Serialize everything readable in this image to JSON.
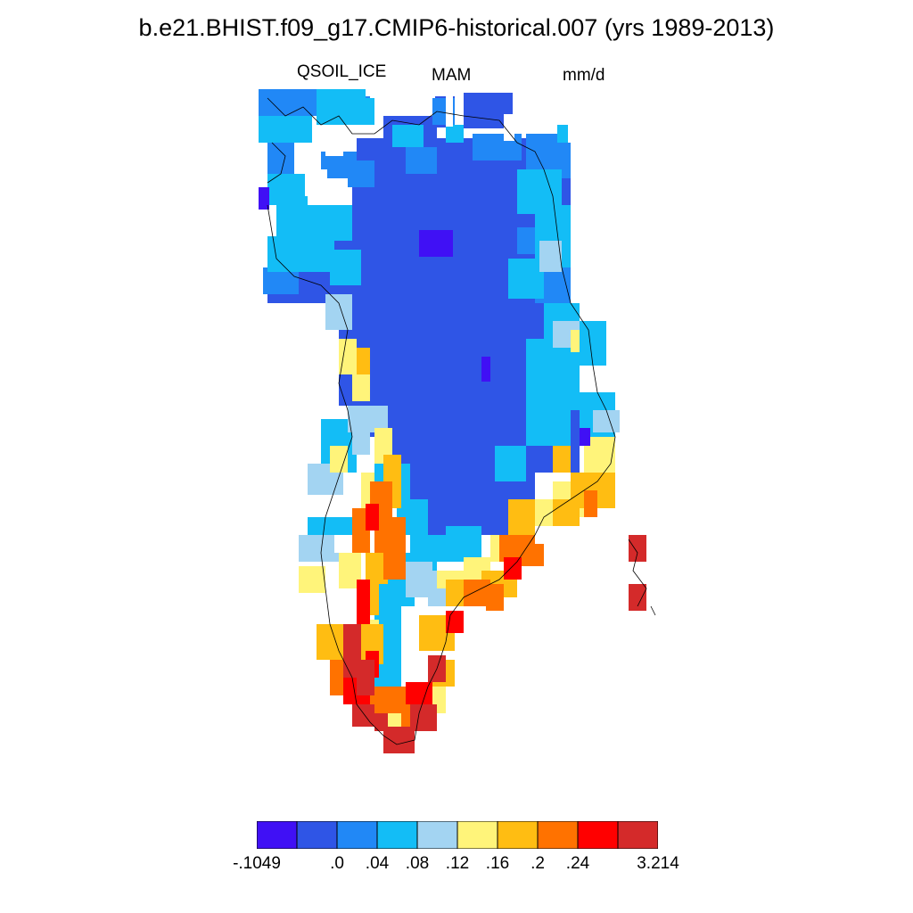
{
  "title": "b.e21.BHIST.f09_g17.CMIP6-historical.007 (yrs 1989-2013)",
  "subtitle": {
    "variable": "QSOIL_ICE",
    "season": "MAM",
    "units": "mm/d"
  },
  "colorbar": {
    "colors": [
      "#4010f5",
      "#2f55e6",
      "#2188f6",
      "#13bdf6",
      "#a3d4f2",
      "#fff47a",
      "#ffbd12",
      "#ff7200",
      "#ff0000",
      "#d42a2a"
    ],
    "labels": [
      "-.1049",
      ".0",
      ".04",
      ".08",
      ".12",
      ".16",
      ".2",
      ".24",
      "3.214"
    ],
    "label_positions": [
      0,
      2,
      3,
      4,
      5,
      6,
      7,
      8,
      10
    ]
  },
  "map": {
    "region": "Greenland",
    "field": "QSOIL_ICE",
    "contour_levels": [
      -0.1049,
      0.0,
      0.04,
      0.08,
      0.12,
      0.16,
      0.2,
      0.24,
      3.214
    ]
  }
}
